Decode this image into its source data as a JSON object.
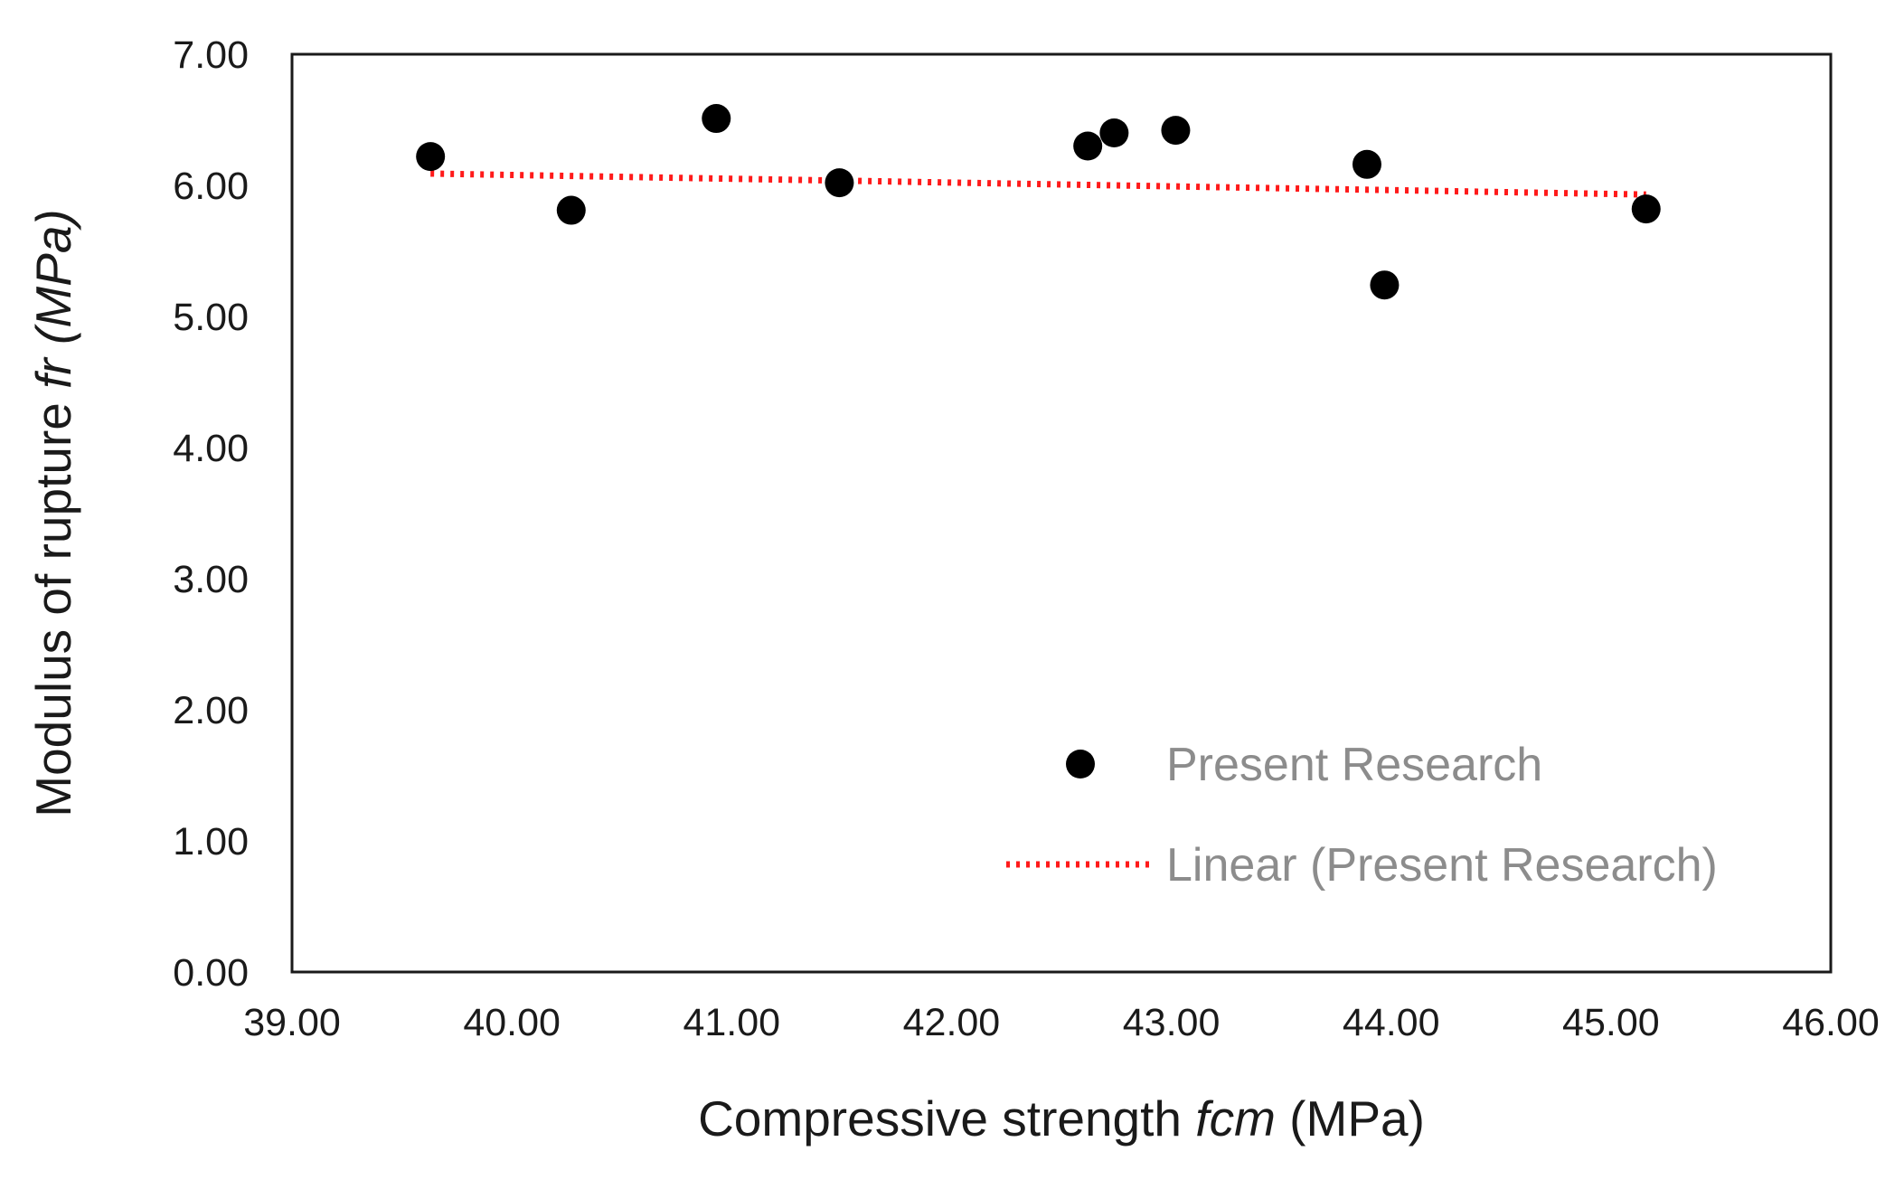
{
  "colors": {
    "point": "#000000",
    "trendline": "#ff1a1a",
    "frame": "#1a1a1a",
    "text": "#1a1a1a",
    "legend_text": "#8c8c8c"
  },
  "chart_data": {
    "type": "scatter",
    "title": "",
    "xlabel": {
      "prefix": "Compressive strength ",
      "italic": "fcm",
      "suffix": " (MPa)"
    },
    "ylabel": {
      "prefix": "Modulus of rupture ",
      "italic": "fr (MPa)",
      "suffix": ""
    },
    "xlim": [
      39,
      46
    ],
    "ylim": [
      0,
      7
    ],
    "x_ticks": [
      "39.00",
      "40.00",
      "41.00",
      "42.00",
      "43.00",
      "44.00",
      "45.00",
      "46.00"
    ],
    "y_ticks": [
      "0.00",
      "1.00",
      "2.00",
      "3.00",
      "4.00",
      "5.00",
      "6.00",
      "7.00"
    ],
    "grid": false,
    "legend_position": "bottom-right",
    "series": [
      {
        "name": "Present Research",
        "type": "scatter",
        "x": [
          39.63,
          40.27,
          40.93,
          41.49,
          42.62,
          42.74,
          43.02,
          43.89,
          43.97,
          45.16
        ],
        "y": [
          6.22,
          5.81,
          6.51,
          6.02,
          6.3,
          6.4,
          6.42,
          6.16,
          5.24,
          5.82
        ]
      },
      {
        "name": "Linear (Present Research)",
        "type": "line",
        "style": "dotted",
        "x": [
          39.63,
          45.16
        ],
        "y": [
          6.09,
          5.93
        ]
      }
    ]
  }
}
